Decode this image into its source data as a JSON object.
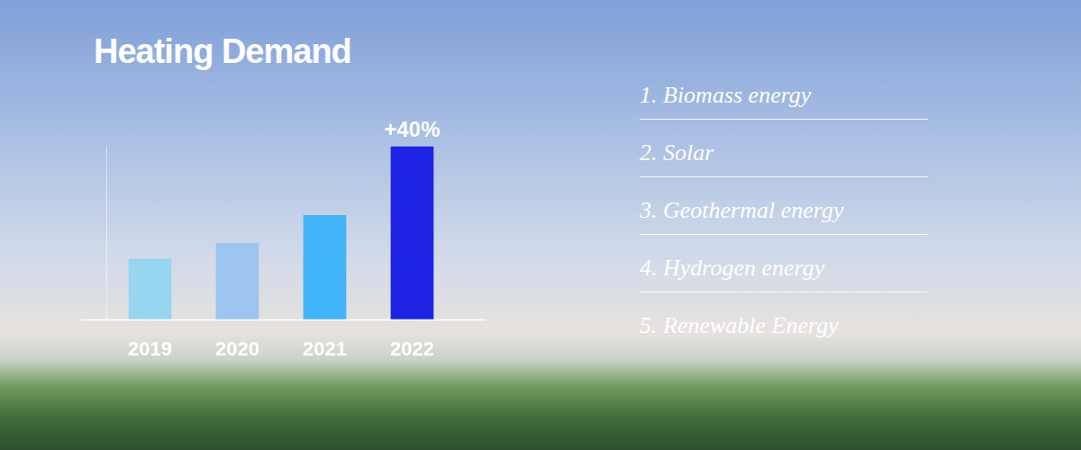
{
  "chart_data": {
    "type": "bar",
    "title": "Heating Demand",
    "categories": [
      "2019",
      "2020",
      "2021",
      "2022"
    ],
    "values": [
      70,
      88,
      120,
      199
    ],
    "colors": [
      "#97d5f0",
      "#9cc4ee",
      "#40b4f6",
      "#1d24e3"
    ],
    "ylim": [
      0,
      200
    ],
    "grid": false,
    "tick_labels": "x",
    "annotations": [
      {
        "text": "+40%",
        "category": "2022"
      }
    ]
  },
  "list": [
    "1. Biomass energy",
    "2. Solar",
    "3. Geothermal energy",
    "4. Hydrogen energy",
    "5. Renewable Energy"
  ]
}
